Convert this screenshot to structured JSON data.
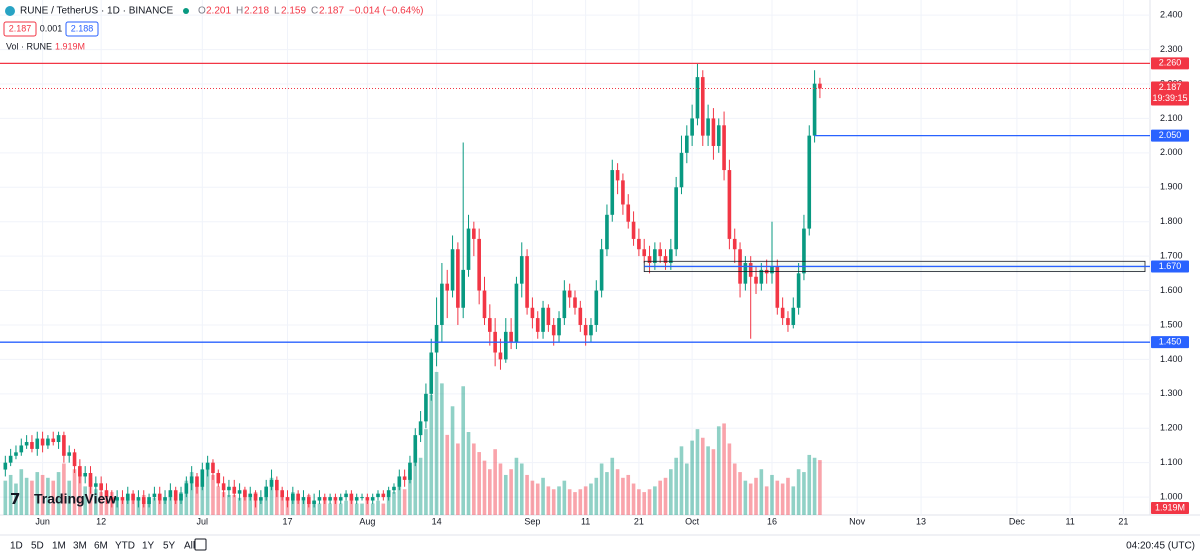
{
  "header": {
    "symbol": "RUNE / TetherUS · 1D · BINANCE",
    "fields": [
      [
        "O",
        "2.201"
      ],
      [
        "H",
        "2.218"
      ],
      [
        "L",
        "2.159"
      ],
      [
        "C",
        "2.187"
      ]
    ],
    "change": "−0.014 (−0.64%)",
    "bid": "2.187",
    "spread": "0.001",
    "ask": "2.188",
    "volume_label": "Vol · RUNE",
    "volume_value": "1.919M"
  },
  "brand": "TradingView",
  "toolbar": [
    "1D",
    "5D",
    "1M",
    "3M",
    "6M",
    "YTD",
    "1Y",
    "5Y",
    "All"
  ],
  "clock": "04:20:45 (UTC)",
  "chart_data": {
    "type": "candlestick",
    "up_color": "#089981",
    "down_color": "#f23645",
    "open": [
      1.08,
      1.1,
      1.12,
      1.13,
      1.15,
      1.16,
      1.14,
      1.17,
      1.15,
      1.17,
      1.16,
      1.18,
      1.12,
      1.13,
      1.09,
      1.06,
      1.07,
      1.03,
      1.04,
      1.02,
      1.0,
      0.99,
      1.0,
      0.99,
      1.01,
      0.99,
      1.0,
      0.98,
      1.0,
      1.01,
      0.99,
      1.0,
      1.02,
      0.99,
      1.01,
      1.04,
      1.06,
      1.03,
      1.08,
      1.1,
      1.07,
      1.04,
      1.02,
      1.03,
      1.01,
      1.02,
      1.0,
      1.01,
      0.99,
      1.0,
      1.03,
      1.05,
      1.02,
      1.0,
      0.99,
      1.01,
      0.99,
      1.0,
      0.98,
      0.99,
      1.0,
      0.99,
      1.0,
      0.99,
      1.0,
      1.01,
      0.99,
      1.0,
      1.0,
      0.99,
      1.0,
      1.01,
      1.0,
      1.02,
      1.03,
      1.06,
      1.05,
      1.1,
      1.18,
      1.22,
      1.3,
      1.42,
      1.5,
      1.62,
      1.6,
      1.72,
      1.55,
      1.66,
      1.78,
      1.75,
      1.6,
      1.52,
      1.48,
      1.42,
      1.4,
      1.48,
      1.45,
      1.62,
      1.7,
      1.55,
      1.52,
      1.48,
      1.55,
      1.5,
      1.47,
      1.52,
      1.6,
      1.58,
      1.55,
      1.5,
      1.47,
      1.5,
      1.6,
      1.72,
      1.82,
      1.95,
      1.92,
      1.85,
      1.8,
      1.75,
      1.72,
      1.7,
      1.68,
      1.72,
      1.7,
      1.68,
      1.72,
      1.9,
      2.0,
      2.05,
      2.1,
      2.22,
      2.05,
      2.1,
      2.02,
      2.08,
      1.95,
      1.75,
      1.72,
      1.62,
      1.68,
      1.64,
      1.62,
      1.66,
      1.65,
      1.67,
      1.55,
      1.52,
      1.5,
      1.55,
      1.65,
      1.78,
      2.05,
      2.201
    ],
    "high": [
      1.12,
      1.14,
      1.15,
      1.17,
      1.18,
      1.18,
      1.19,
      1.19,
      1.18,
      1.19,
      1.19,
      1.19,
      1.15,
      1.14,
      1.11,
      1.09,
      1.09,
      1.06,
      1.06,
      1.04,
      1.02,
      1.02,
      1.02,
      1.03,
      1.02,
      1.02,
      1.02,
      1.01,
      1.03,
      1.03,
      1.02,
      1.04,
      1.03,
      1.03,
      1.06,
      1.09,
      1.07,
      1.1,
      1.12,
      1.11,
      1.08,
      1.06,
      1.05,
      1.05,
      1.04,
      1.03,
      1.03,
      1.02,
      1.02,
      1.05,
      1.08,
      1.06,
      1.03,
      1.02,
      1.03,
      1.02,
      1.02,
      1.01,
      1.01,
      1.02,
      1.01,
      1.01,
      1.01,
      1.01,
      1.02,
      1.02,
      1.01,
      1.01,
      1.01,
      1.01,
      1.02,
      1.02,
      1.03,
      1.04,
      1.08,
      1.08,
      1.12,
      1.2,
      1.25,
      1.33,
      1.46,
      1.58,
      1.68,
      1.66,
      1.76,
      1.74,
      2.03,
      1.82,
      1.8,
      1.78,
      1.64,
      1.56,
      1.52,
      1.46,
      1.52,
      1.52,
      1.64,
      1.74,
      1.72,
      1.58,
      1.54,
      1.57,
      1.56,
      1.52,
      1.54,
      1.63,
      1.62,
      1.6,
      1.57,
      1.52,
      1.52,
      1.63,
      1.75,
      1.85,
      1.98,
      1.97,
      1.94,
      1.88,
      1.83,
      1.78,
      1.75,
      1.73,
      1.74,
      1.74,
      1.72,
      1.75,
      1.93,
      2.05,
      2.08,
      2.14,
      2.26,
      2.24,
      2.14,
      2.13,
      2.1,
      2.12,
      1.98,
      1.78,
      1.74,
      1.7,
      1.7,
      1.67,
      1.68,
      1.69,
      1.8,
      1.69,
      1.58,
      1.54,
      1.58,
      1.68,
      1.82,
      2.08,
      2.24,
      2.218
    ],
    "low": [
      1.06,
      1.09,
      1.11,
      1.12,
      1.14,
      1.13,
      1.12,
      1.13,
      1.14,
      1.15,
      1.14,
      1.1,
      1.1,
      1.07,
      1.04,
      1.04,
      1.01,
      1.01,
      1.0,
      0.98,
      0.97,
      0.97,
      0.98,
      0.98,
      0.98,
      0.97,
      0.97,
      0.97,
      0.99,
      0.98,
      0.98,
      0.99,
      0.98,
      0.98,
      1.0,
      1.02,
      1.01,
      1.02,
      1.06,
      1.05,
      1.03,
      1.0,
      1.0,
      1.0,
      0.99,
      0.99,
      0.99,
      0.97,
      0.98,
      0.99,
      1.02,
      1.0,
      0.99,
      0.97,
      0.98,
      0.98,
      0.98,
      0.97,
      0.97,
      0.98,
      0.98,
      0.98,
      0.98,
      0.98,
      0.99,
      0.98,
      0.98,
      0.99,
      0.98,
      0.98,
      0.99,
      0.99,
      0.99,
      1.01,
      1.02,
      1.03,
      1.04,
      1.09,
      1.16,
      1.2,
      1.28,
      1.38,
      1.45,
      1.52,
      1.58,
      1.5,
      1.52,
      1.64,
      1.7,
      1.56,
      1.5,
      1.44,
      1.38,
      1.37,
      1.39,
      1.43,
      1.43,
      1.58,
      1.53,
      1.49,
      1.46,
      1.46,
      1.48,
      1.44,
      1.45,
      1.5,
      1.55,
      1.53,
      1.48,
      1.44,
      1.45,
      1.48,
      1.58,
      1.7,
      1.8,
      1.88,
      1.82,
      1.78,
      1.73,
      1.7,
      1.68,
      1.65,
      1.66,
      1.68,
      1.66,
      1.66,
      1.7,
      1.88,
      1.97,
      2.02,
      2.08,
      2.02,
      2.02,
      1.98,
      2.0,
      1.92,
      1.72,
      1.68,
      1.58,
      1.6,
      1.46,
      1.59,
      1.6,
      1.62,
      1.62,
      1.53,
      1.5,
      1.48,
      1.49,
      1.53,
      1.63,
      1.76,
      2.03,
      2.159
    ],
    "close": [
      1.1,
      1.12,
      1.13,
      1.15,
      1.16,
      1.14,
      1.17,
      1.15,
      1.17,
      1.16,
      1.18,
      1.12,
      1.13,
      1.09,
      1.06,
      1.07,
      1.03,
      1.04,
      1.02,
      1.0,
      0.99,
      1.0,
      0.99,
      1.01,
      0.99,
      1.0,
      0.98,
      1.0,
      1.01,
      0.99,
      1.0,
      1.02,
      0.99,
      1.01,
      1.04,
      1.06,
      1.03,
      1.08,
      1.1,
      1.07,
      1.04,
      1.02,
      1.03,
      1.01,
      1.02,
      1.0,
      1.01,
      0.99,
      1.0,
      1.03,
      1.05,
      1.02,
      1.0,
      0.99,
      1.01,
      0.99,
      1.0,
      0.98,
      0.99,
      1.0,
      0.99,
      1.0,
      0.99,
      1.0,
      1.01,
      0.99,
      1.0,
      1.0,
      0.99,
      1.0,
      1.01,
      1.0,
      1.02,
      1.03,
      1.06,
      1.05,
      1.1,
      1.18,
      1.22,
      1.3,
      1.42,
      1.5,
      1.62,
      1.6,
      1.72,
      1.55,
      1.66,
      1.78,
      1.75,
      1.6,
      1.52,
      1.48,
      1.42,
      1.4,
      1.48,
      1.45,
      1.62,
      1.7,
      1.55,
      1.52,
      1.48,
      1.55,
      1.5,
      1.47,
      1.52,
      1.6,
      1.58,
      1.55,
      1.5,
      1.47,
      1.5,
      1.6,
      1.72,
      1.82,
      1.95,
      1.92,
      1.85,
      1.8,
      1.75,
      1.72,
      1.7,
      1.68,
      1.72,
      1.7,
      1.68,
      1.72,
      1.9,
      2.0,
      2.05,
      2.1,
      2.22,
      2.05,
      2.1,
      2.02,
      2.08,
      1.95,
      1.75,
      1.72,
      1.62,
      1.68,
      1.64,
      1.62,
      1.66,
      1.65,
      1.67,
      1.55,
      1.52,
      1.5,
      1.55,
      1.65,
      1.78,
      2.05,
      2.201,
      2.187
    ],
    "volume": [
      1.2,
      1.4,
      1.1,
      1.6,
      1.3,
      1.2,
      1.5,
      1.4,
      1.3,
      1.2,
      1.5,
      1.8,
      1.2,
      1.6,
      1.5,
      1.0,
      1.3,
      0.9,
      0.8,
      0.7,
      0.8,
      0.6,
      0.5,
      0.7,
      0.5,
      0.6,
      0.7,
      0.5,
      0.6,
      0.5,
      0.6,
      0.7,
      0.6,
      0.8,
      1.2,
      1.5,
      1.1,
      1.6,
      1.8,
      1.4,
      1.0,
      0.8,
      0.7,
      0.7,
      0.6,
      0.9,
      0.7,
      0.8,
      0.6,
      1.0,
      1.3,
      0.9,
      0.7,
      0.6,
      0.8,
      0.6,
      0.5,
      0.7,
      0.5,
      0.4,
      0.5,
      0.4,
      0.5,
      0.4,
      0.5,
      0.6,
      0.4,
      0.4,
      0.5,
      0.4,
      0.5,
      0.4,
      0.7,
      0.8,
      1.0,
      0.9,
      1.6,
      2.3,
      2.0,
      3.0,
      4.2,
      5.0,
      4.6,
      2.8,
      3.8,
      2.5,
      4.5,
      2.9,
      2.5,
      2.2,
      1.9,
      1.6,
      2.3,
      1.8,
      1.4,
      1.6,
      2.0,
      1.8,
      1.4,
      1.2,
      1.1,
      1.3,
      1.0,
      0.9,
      1.0,
      1.2,
      0.9,
      0.8,
      0.9,
      1.0,
      1.1,
      1.3,
      1.8,
      1.5,
      2.0,
      1.6,
      1.3,
      1.4,
      1.1,
      0.9,
      0.8,
      0.9,
      1.0,
      1.2,
      1.3,
      1.6,
      2.0,
      2.4,
      1.8,
      2.6,
      3.0,
      2.7,
      2.4,
      2.3,
      3.1,
      3.2,
      2.5,
      1.8,
      1.5,
      1.2,
      1.1,
      1.3,
      1.6,
      1.0,
      1.4,
      1.2,
      1.1,
      1.3,
      1.0,
      1.6,
      1.5,
      2.1,
      2.0,
      1.919
    ],
    "xlim": [
      -1,
      215
    ],
    "xticks": [
      {
        "value": 7,
        "label": "Jun"
      },
      {
        "value": 18,
        "label": "12"
      },
      {
        "value": 37,
        "label": "Jul"
      },
      {
        "value": 53,
        "label": "17"
      },
      {
        "value": 68,
        "label": "Aug"
      },
      {
        "value": 81,
        "label": "14"
      },
      {
        "value": 99,
        "label": "Sep"
      },
      {
        "value": 109,
        "label": "11"
      },
      {
        "value": 119,
        "label": "21"
      },
      {
        "value": 129,
        "label": "Oct"
      },
      {
        "value": 144,
        "label": "16"
      },
      {
        "value": 160,
        "label": "Nov"
      },
      {
        "value": 172,
        "label": "13"
      },
      {
        "value": 190,
        "label": "Dec"
      },
      {
        "value": 200,
        "label": "11"
      },
      {
        "value": 210,
        "label": "21"
      }
    ],
    "ylim": [
      0.948,
      2.444
    ],
    "yticks": [
      {
        "value": 1.0,
        "label": "1.000"
      },
      {
        "value": 1.1,
        "label": "1.100"
      },
      {
        "value": 1.2,
        "label": "1.200"
      },
      {
        "value": 1.3,
        "label": "1.300"
      },
      {
        "value": 1.4,
        "label": "1.400"
      },
      {
        "value": 1.5,
        "label": "1.500"
      },
      {
        "value": 1.6,
        "label": "1.600"
      },
      {
        "value": 1.7,
        "label": "1.700"
      },
      {
        "value": 1.8,
        "label": "1.800"
      },
      {
        "value": 1.9,
        "label": "1.900"
      },
      {
        "value": 2.0,
        "label": "2.000"
      },
      {
        "value": 2.1,
        "label": "2.100"
      },
      {
        "value": 2.2,
        "label": "2.200"
      },
      {
        "value": 2.3,
        "label": "2.300"
      },
      {
        "value": 2.4,
        "label": "2.400"
      }
    ],
    "y2lim": [
      0,
      18
    ],
    "grid": true,
    "levels": [
      {
        "value": 2.26,
        "label": "2.260",
        "color": "#f23645"
      },
      {
        "value": 2.05,
        "label": "2.050",
        "color": "#2962ff",
        "start": 152
      },
      {
        "value": 1.67,
        "label": "1.670",
        "color": "#2962ff",
        "start": 120
      },
      {
        "value": 1.45,
        "label": "1.450",
        "color": "#2962ff"
      }
    ],
    "zone": {
      "low": 1.655,
      "high": 1.685,
      "start": 120
    },
    "current": {
      "value": 2.187,
      "label": "2.187",
      "countdown": "19:39:15"
    }
  }
}
